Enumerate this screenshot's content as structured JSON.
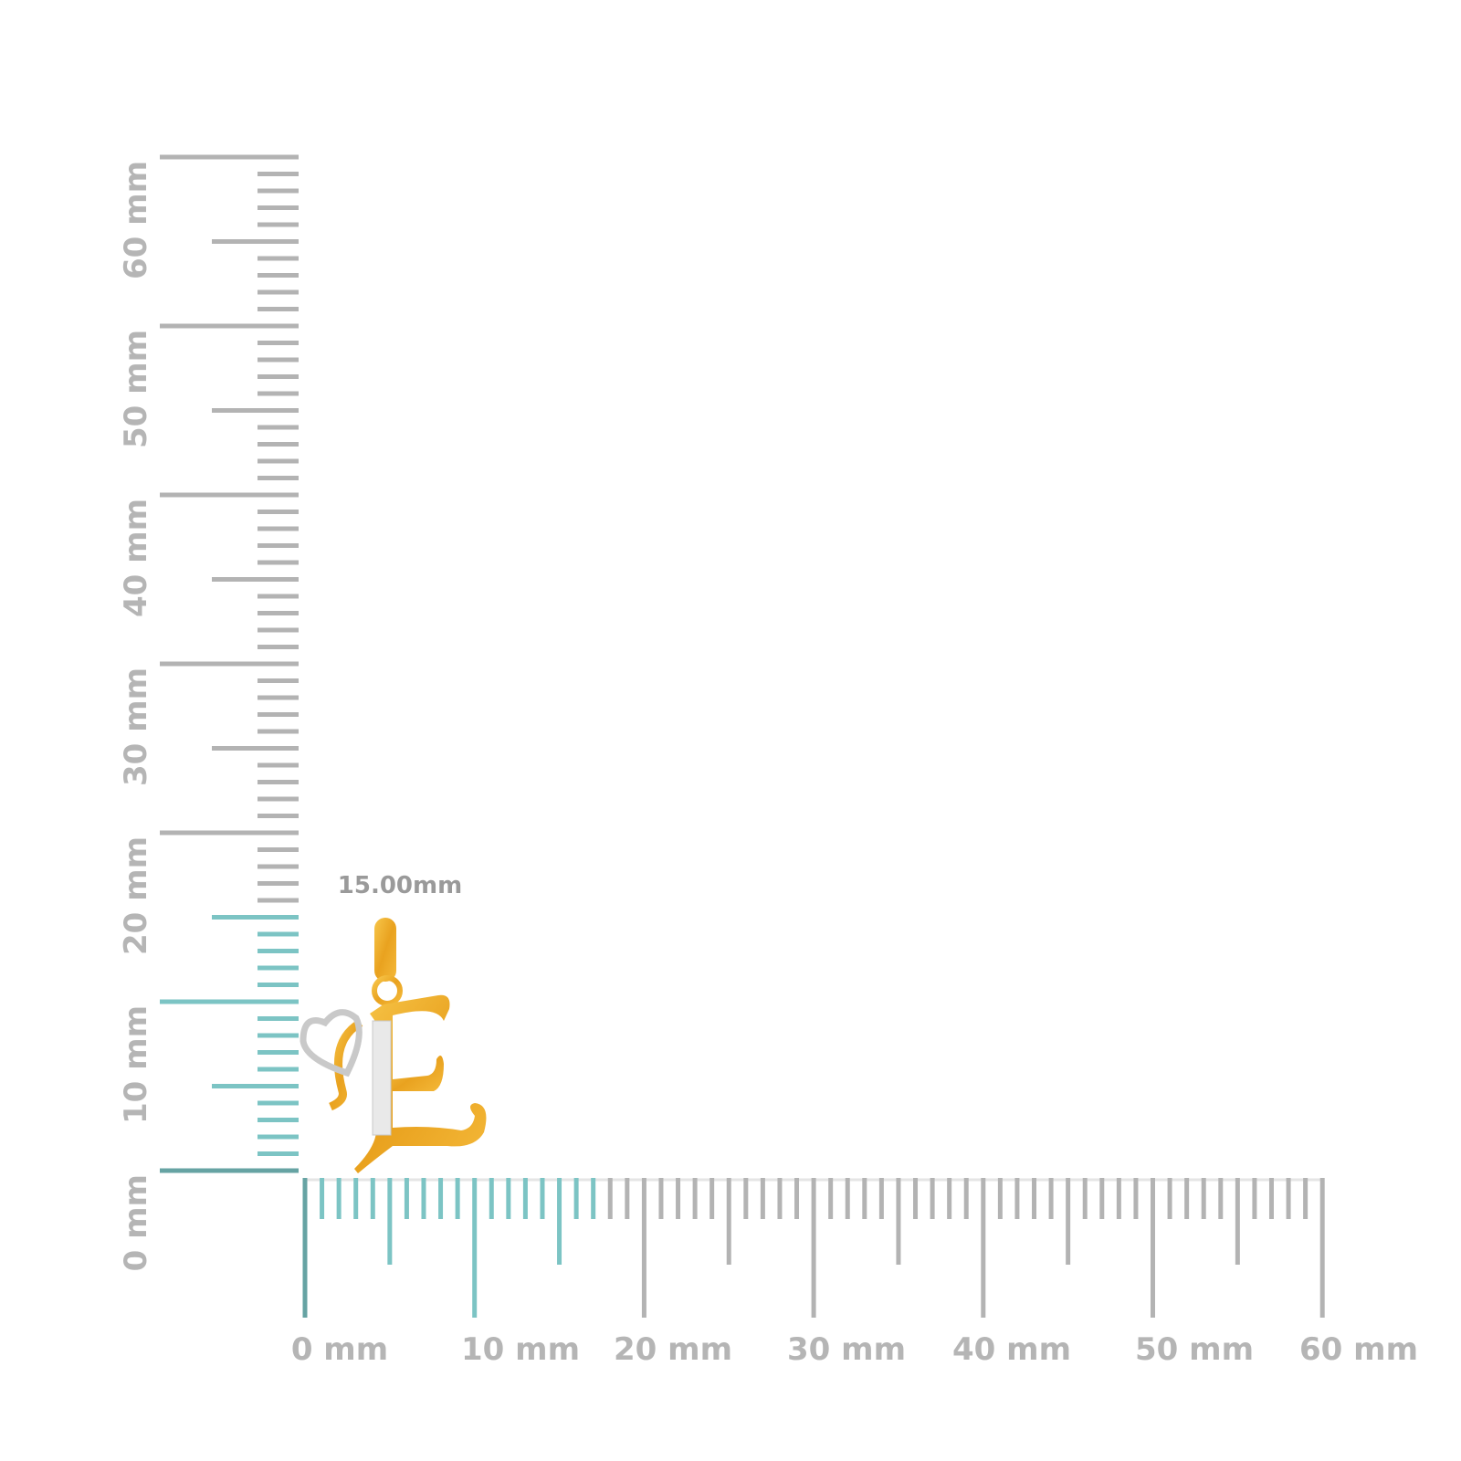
{
  "vertical_ruler": {
    "labels": [
      "0 mm",
      "10 mm",
      "20 mm",
      "30 mm",
      "40 mm",
      "50 mm",
      "60 mm"
    ]
  },
  "horizontal_ruler": {
    "labels": [
      "0 mm",
      "10 mm",
      "20 mm",
      "30 mm",
      "40 mm",
      "50 mm",
      "60 mm"
    ]
  },
  "product": {
    "dimension_label": "15.00mm"
  }
}
